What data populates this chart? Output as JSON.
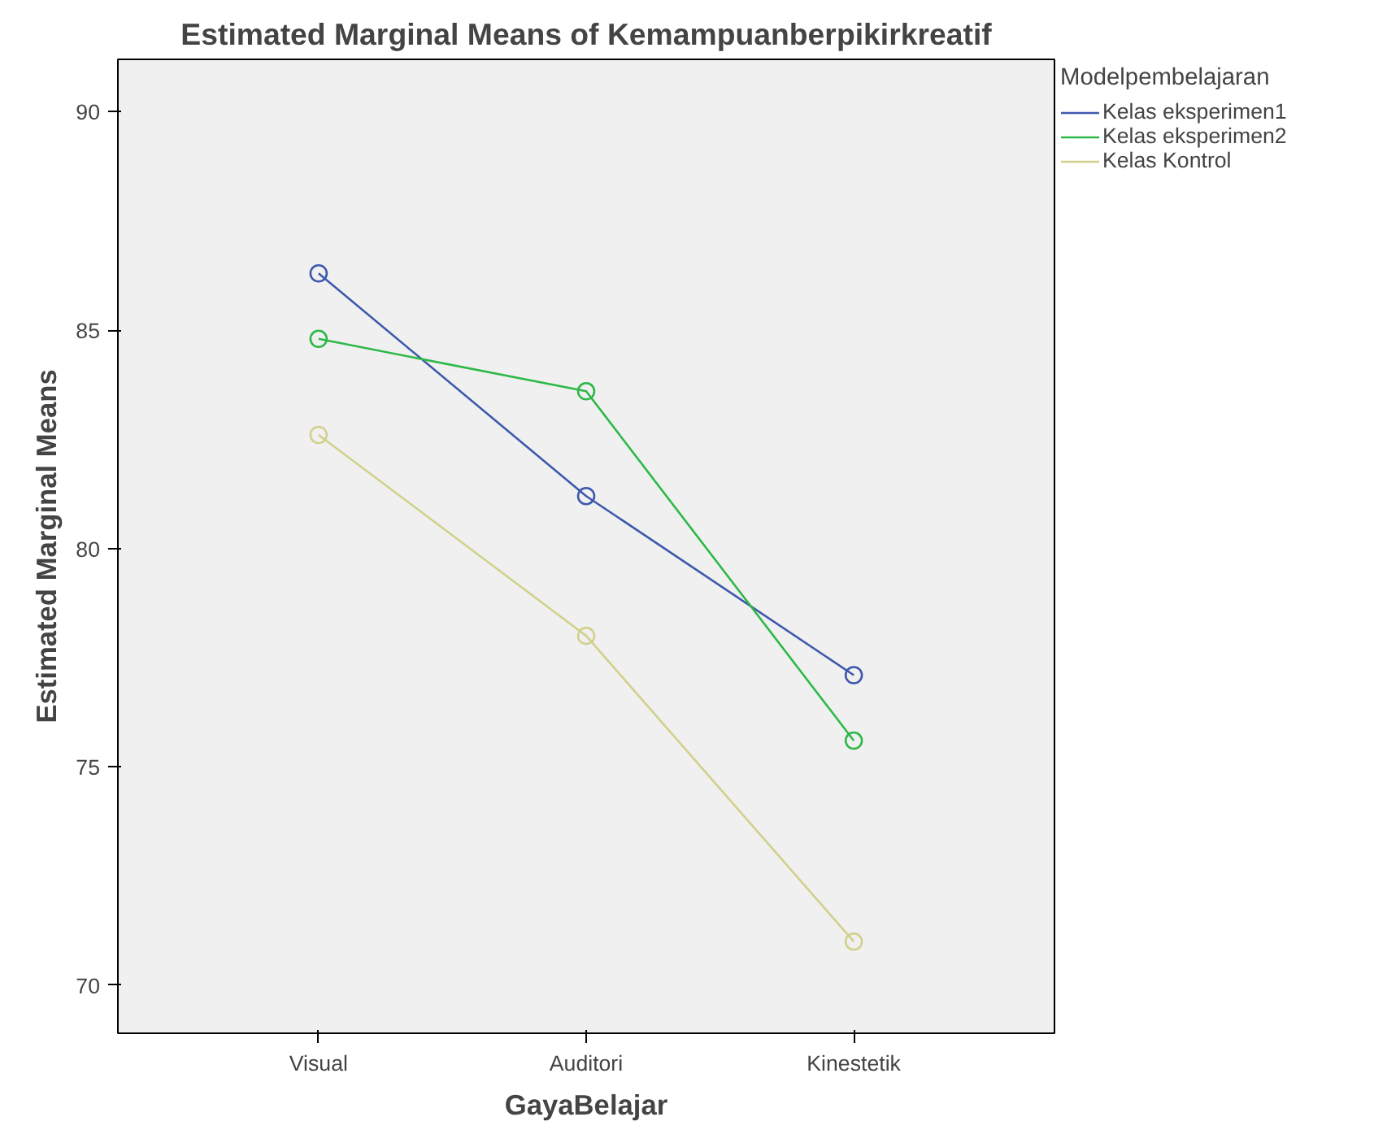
{
  "chart_data": {
    "type": "line",
    "title": "Estimated Marginal Means of Kemampuanberpikirkreatif",
    "xlabel": "GayaBelajar",
    "ylabel": "Estimated Marginal Means",
    "legend_title": "Modelpembelajaran",
    "categories": [
      "Visual",
      "Auditori",
      "Kinestetik"
    ],
    "series": [
      {
        "name": "Kelas eksperimen1",
        "color": "#3e58ac",
        "values": [
          86.3,
          81.2,
          77.1
        ]
      },
      {
        "name": "Kelas eksperimen2",
        "color": "#2eb848",
        "values": [
          84.8,
          83.6,
          75.6
        ]
      },
      {
        "name": "Kelas Kontrol",
        "color": "#d1d18b",
        "values": [
          82.6,
          78.0,
          71.0
        ]
      }
    ],
    "ylim": [
      68.9,
      91.2
    ],
    "yticks": [
      70,
      75,
      80,
      85,
      90
    ],
    "grid": false,
    "legend": "top right",
    "marker": "circle",
    "line_style": "solid"
  }
}
